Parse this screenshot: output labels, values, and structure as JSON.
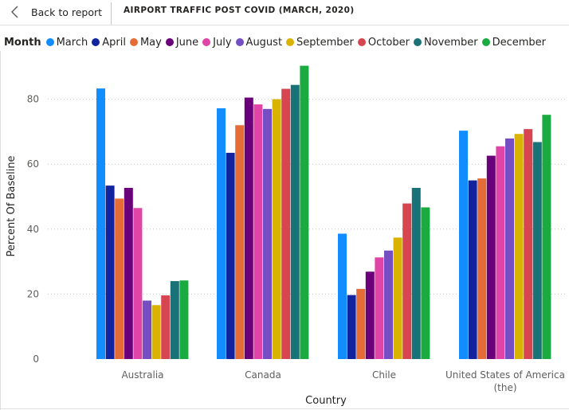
{
  "header": {
    "back_label": "Back to report",
    "title": "AIRPORT TRAFFIC POST COVID (MARCH, 2020)"
  },
  "legend": {
    "title": "Month"
  },
  "chart_data": {
    "type": "bar",
    "xlabel": "Country",
    "ylabel": "Percent Of Baseline",
    "ylim": [
      0,
      92
    ],
    "yticks": [
      0,
      20,
      40,
      60,
      80
    ],
    "grid": "horizontal-dotted",
    "legend_position": "top-left",
    "categories": [
      [
        "Australia"
      ],
      [
        "Canada"
      ],
      [
        "Chile"
      ],
      [
        "United States of America",
        "(the)"
      ]
    ],
    "series": [
      {
        "name": "March",
        "color": "#118DFF",
        "values": [
          83.3,
          77.2,
          38.6,
          70.3
        ]
      },
      {
        "name": "April",
        "color": "#12239E",
        "values": [
          53.4,
          63.5,
          19.7,
          55.0
        ]
      },
      {
        "name": "May",
        "color": "#E66C37",
        "values": [
          49.4,
          72.0,
          21.6,
          55.6
        ]
      },
      {
        "name": "June",
        "color": "#6B007B",
        "values": [
          52.7,
          80.5,
          26.9,
          62.6
        ]
      },
      {
        "name": "July",
        "color": "#E044A7",
        "values": [
          46.5,
          78.4,
          31.3,
          65.5
        ]
      },
      {
        "name": "August",
        "color": "#744EC2",
        "values": [
          18.0,
          77.0,
          33.4,
          67.9
        ]
      },
      {
        "name": "September",
        "color": "#D9B300",
        "values": [
          16.6,
          80.0,
          37.4,
          69.3
        ]
      },
      {
        "name": "October",
        "color": "#D64550",
        "values": [
          19.6,
          83.2,
          47.9,
          70.8
        ]
      },
      {
        "name": "November",
        "color": "#197278",
        "values": [
          24.0,
          84.4,
          52.7,
          66.8
        ]
      },
      {
        "name": "December",
        "color": "#1AAB40",
        "values": [
          24.2,
          90.3,
          46.7,
          75.2
        ]
      }
    ]
  }
}
